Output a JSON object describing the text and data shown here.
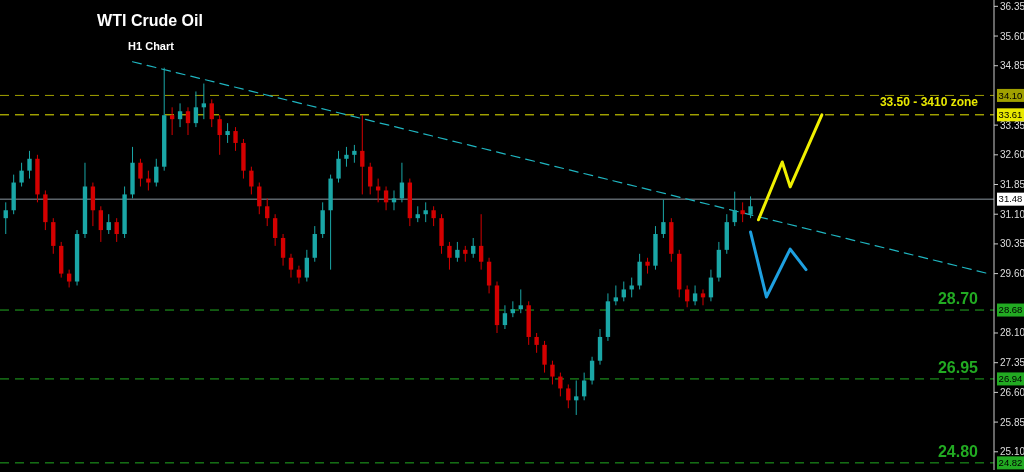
{
  "chart_data": {
    "type": "candlestick",
    "title": "WTI Crude Oil",
    "subtitle": "H1 Chart",
    "categories": [
      null,
      null,
      null,
      null,
      null,
      null,
      null,
      null,
      null,
      null,
      null,
      null,
      null,
      null,
      null,
      null,
      null,
      null,
      null,
      null,
      null,
      null,
      null,
      null,
      null,
      null,
      null,
      null,
      null,
      null,
      null,
      null,
      null,
      null,
      null,
      null,
      null,
      null,
      null,
      null,
      null,
      null,
      null,
      null,
      null,
      null,
      null,
      null,
      null,
      null,
      null,
      null,
      null,
      null,
      null,
      null,
      null,
      null,
      null,
      null,
      null,
      null,
      null,
      null,
      null,
      null,
      null,
      null,
      null,
      null,
      null,
      null,
      null,
      null,
      null,
      null,
      null,
      null,
      null,
      null,
      null,
      null,
      null,
      null,
      null,
      null,
      null,
      null,
      null,
      null,
      null,
      null,
      null,
      null,
      null,
      null,
      null,
      null,
      null,
      null,
      null,
      null,
      null,
      null,
      null,
      null,
      null,
      null,
      null,
      null,
      null,
      null,
      null,
      null,
      null,
      null,
      null,
      null,
      null,
      null,
      null,
      null,
      null,
      null,
      null
    ],
    "ohlc": [
      [
        31.0,
        31.4,
        30.6,
        31.2
      ],
      [
        31.2,
        32.1,
        31.1,
        31.9
      ],
      [
        31.9,
        32.4,
        31.8,
        32.2
      ],
      [
        32.2,
        32.7,
        32.0,
        32.5
      ],
      [
        32.5,
        32.6,
        31.4,
        31.6
      ],
      [
        31.6,
        31.7,
        30.7,
        30.9
      ],
      [
        30.9,
        31.0,
        30.1,
        30.3
      ],
      [
        30.3,
        30.4,
        29.5,
        29.6
      ],
      [
        29.6,
        29.7,
        29.25,
        29.4
      ],
      [
        29.4,
        30.7,
        29.3,
        30.6
      ],
      [
        30.6,
        32.4,
        30.5,
        31.8
      ],
      [
        31.8,
        31.9,
        30.8,
        31.2
      ],
      [
        31.2,
        31.3,
        30.4,
        30.7
      ],
      [
        30.7,
        31.1,
        30.6,
        30.9
      ],
      [
        30.9,
        31.0,
        30.4,
        30.6
      ],
      [
        30.6,
        31.8,
        30.5,
        31.6
      ],
      [
        31.6,
        32.8,
        31.5,
        32.4
      ],
      [
        32.4,
        32.5,
        31.8,
        32.0
      ],
      [
        32.0,
        32.2,
        31.7,
        31.9
      ],
      [
        31.9,
        32.5,
        31.8,
        32.3
      ],
      [
        32.3,
        34.8,
        32.2,
        33.6
      ],
      [
        33.6,
        33.8,
        33.1,
        33.5
      ],
      [
        33.5,
        33.9,
        33.3,
        33.7
      ],
      [
        33.7,
        33.8,
        33.1,
        33.4
      ],
      [
        33.4,
        34.2,
        33.3,
        33.8
      ],
      [
        33.8,
        34.4,
        33.5,
        33.9
      ],
      [
        33.9,
        34.0,
        33.3,
        33.5
      ],
      [
        33.5,
        33.6,
        32.6,
        33.1
      ],
      [
        33.1,
        33.4,
        32.9,
        33.2
      ],
      [
        33.2,
        33.3,
        32.7,
        32.9
      ],
      [
        32.9,
        33.0,
        32.0,
        32.2
      ],
      [
        32.2,
        32.3,
        31.6,
        31.8
      ],
      [
        31.8,
        31.9,
        31.1,
        31.3
      ],
      [
        31.3,
        31.5,
        30.8,
        31.0
      ],
      [
        31.0,
        31.1,
        30.3,
        30.5
      ],
      [
        30.5,
        30.6,
        29.8,
        30.0
      ],
      [
        30.0,
        30.1,
        29.5,
        29.7
      ],
      [
        29.7,
        29.8,
        29.35,
        29.5
      ],
      [
        29.5,
        30.2,
        29.4,
        30.0
      ],
      [
        30.0,
        30.8,
        29.9,
        30.6
      ],
      [
        30.6,
        31.4,
        30.5,
        31.2
      ],
      [
        31.2,
        32.1,
        29.7,
        32.0
      ],
      [
        32.0,
        32.7,
        31.9,
        32.5
      ],
      [
        32.5,
        32.8,
        32.3,
        32.6
      ],
      [
        32.6,
        32.85,
        32.4,
        32.7
      ],
      [
        32.7,
        33.6,
        31.6,
        32.3
      ],
      [
        32.3,
        32.4,
        31.6,
        31.8
      ],
      [
        31.8,
        32.0,
        31.4,
        31.7
      ],
      [
        31.7,
        31.8,
        31.2,
        31.4
      ],
      [
        31.4,
        31.7,
        31.2,
        31.5
      ],
      [
        31.5,
        32.4,
        31.4,
        31.9
      ],
      [
        31.9,
        32.0,
        30.8,
        31.0
      ],
      [
        31.0,
        31.3,
        30.9,
        31.1
      ],
      [
        31.1,
        31.4,
        30.9,
        31.2
      ],
      [
        31.2,
        31.3,
        30.8,
        31.0
      ],
      [
        31.0,
        31.1,
        30.1,
        30.3
      ],
      [
        30.3,
        30.4,
        29.7,
        30.0
      ],
      [
        30.0,
        30.4,
        29.9,
        30.2
      ],
      [
        30.2,
        30.3,
        29.9,
        30.1
      ],
      [
        30.1,
        30.5,
        30.0,
        30.3
      ],
      [
        30.3,
        31.1,
        29.7,
        29.9
      ],
      [
        29.9,
        30.0,
        29.1,
        29.3
      ],
      [
        29.3,
        29.4,
        28.1,
        28.3
      ],
      [
        28.3,
        28.8,
        28.2,
        28.6
      ],
      [
        28.6,
        28.9,
        28.5,
        28.7
      ],
      [
        28.7,
        29.2,
        28.6,
        28.8
      ],
      [
        28.8,
        28.9,
        27.8,
        28.0
      ],
      [
        28.0,
        28.1,
        27.6,
        27.8
      ],
      [
        27.8,
        27.9,
        27.1,
        27.3
      ],
      [
        27.3,
        27.4,
        26.8,
        27.0
      ],
      [
        27.0,
        27.1,
        26.5,
        26.7
      ],
      [
        26.7,
        26.8,
        26.2,
        26.4
      ],
      [
        26.4,
        26.9,
        26.03,
        26.5
      ],
      [
        26.5,
        27.1,
        26.4,
        26.9
      ],
      [
        26.9,
        27.5,
        26.8,
        27.4
      ],
      [
        27.4,
        28.2,
        27.3,
        28.0
      ],
      [
        28.0,
        29.1,
        27.9,
        28.9
      ],
      [
        28.9,
        29.3,
        28.8,
        29.0
      ],
      [
        29.0,
        29.4,
        28.9,
        29.2
      ],
      [
        29.2,
        29.5,
        29.0,
        29.3
      ],
      [
        29.3,
        30.1,
        29.2,
        29.9
      ],
      [
        29.9,
        30.0,
        29.6,
        29.8
      ],
      [
        29.8,
        30.8,
        29.7,
        30.6
      ],
      [
        30.6,
        31.47,
        30.5,
        30.9
      ],
      [
        30.9,
        31.0,
        29.9,
        30.1
      ],
      [
        30.1,
        30.2,
        29.0,
        29.2
      ],
      [
        29.2,
        29.3,
        28.75,
        28.9
      ],
      [
        28.9,
        29.3,
        28.8,
        29.1
      ],
      [
        29.1,
        29.2,
        28.8,
        29.0
      ],
      [
        29.0,
        29.7,
        28.9,
        29.5
      ],
      [
        29.5,
        30.4,
        29.4,
        30.2
      ],
      [
        30.2,
        31.1,
        30.1,
        30.9
      ],
      [
        30.9,
        31.67,
        30.8,
        31.2
      ],
      [
        31.2,
        31.4,
        30.9,
        31.1
      ],
      [
        31.1,
        31.55,
        31.0,
        31.3
      ],
      null,
      null,
      null,
      null,
      null,
      null,
      null,
      null,
      null,
      null,
      null,
      null,
      null,
      null,
      null,
      null,
      null,
      null,
      null,
      null,
      null,
      null,
      null,
      null,
      null,
      null,
      null,
      null,
      null,
      null
    ],
    "colors": [
      "#1aa6a6",
      "#1aa6a6",
      "#1aa6a6",
      "#1aa6a6",
      "#d40000",
      "#d40000",
      "#d40000",
      "#d40000",
      "#d40000",
      "#1aa6a6",
      "#1aa6a6",
      "#d40000",
      "#d40000",
      "#1aa6a6",
      "#d40000",
      "#1aa6a6",
      "#1aa6a6",
      "#d40000",
      "#d40000",
      "#1aa6a6",
      "#1aa6a6",
      "#d40000",
      "#1aa6a6",
      "#d40000",
      "#1aa6a6",
      "#1aa6a6",
      "#d40000",
      "#d40000",
      "#1aa6a6",
      "#d40000",
      "#d40000",
      "#d40000",
      "#d40000",
      "#d40000",
      "#d40000",
      "#d40000",
      "#d40000",
      "#d40000",
      "#1aa6a6",
      "#1aa6a6",
      "#1aa6a6",
      "#1aa6a6",
      "#1aa6a6",
      "#1aa6a6",
      "#1aa6a6",
      "#d40000",
      "#d40000",
      "#d40000",
      "#d40000",
      "#1aa6a6",
      "#1aa6a6",
      "#d40000",
      "#1aa6a6",
      "#1aa6a6",
      "#d40000",
      "#d40000",
      "#d40000",
      "#1aa6a6",
      "#d40000",
      "#1aa6a6",
      "#d40000",
      "#d40000",
      "#d40000",
      "#1aa6a6",
      "#1aa6a6",
      "#1aa6a6",
      "#d40000",
      "#d40000",
      "#d40000",
      "#d40000",
      "#d40000",
      "#d40000",
      "#1aa6a6",
      "#1aa6a6",
      "#1aa6a6",
      "#1aa6a6",
      "#1aa6a6",
      "#1aa6a6",
      "#1aa6a6",
      "#1aa6a6",
      "#1aa6a6",
      "#d40000",
      "#1aa6a6",
      "#1aa6a6",
      "#d40000",
      "#d40000",
      "#d40000",
      "#1aa6a6",
      "#d40000",
      "#1aa6a6",
      "#1aa6a6",
      "#1aa6a6",
      "#1aa6a6",
      "#d40000",
      "#1aa6a6",
      null,
      null,
      null,
      null,
      null,
      null,
      null,
      null,
      null,
      null,
      null,
      null,
      null,
      null,
      null,
      null,
      null,
      null,
      null,
      null,
      null,
      null,
      null,
      null,
      null,
      null,
      null,
      null,
      null,
      null
    ],
    "series": [
      {
        "type": "line",
        "color": "#1fb5c0",
        "line_style": "dashed",
        "values": [
          null,
          null,
          null,
          null,
          null,
          null,
          null,
          null,
          null,
          null,
          null,
          null,
          null,
          null,
          null,
          null,
          34.95,
          null,
          null,
          null,
          null,
          null,
          null,
          null,
          null,
          null,
          null,
          null,
          null,
          null,
          null,
          null,
          null,
          null,
          null,
          null,
          null,
          null,
          null,
          null,
          null,
          null,
          null,
          null,
          null,
          null,
          null,
          null,
          null,
          null,
          null,
          null,
          null,
          null,
          null,
          null,
          null,
          null,
          null,
          null,
          null,
          null,
          null,
          null,
          null,
          null,
          null,
          null,
          null,
          null,
          null,
          null,
          null,
          null,
          null,
          null,
          null,
          null,
          null,
          null,
          null,
          null,
          null,
          null,
          null,
          null,
          null,
          null,
          null,
          null,
          null,
          null,
          null,
          null,
          null,
          null,
          null,
          null,
          null,
          null,
          null,
          null,
          null,
          null,
          null,
          null,
          null,
          null,
          null,
          null,
          null,
          null,
          null,
          null,
          null,
          null,
          null,
          null,
          null,
          null,
          null,
          null,
          null,
          null,
          29.6
        ]
      },
      {
        "type": "line",
        "color": "#f0f000",
        "line_style": "solid",
        "values": [
          null,
          null,
          null,
          null,
          null,
          null,
          null,
          null,
          null,
          null,
          null,
          null,
          null,
          null,
          null,
          null,
          null,
          null,
          null,
          null,
          null,
          null,
          null,
          null,
          null,
          null,
          null,
          null,
          null,
          null,
          null,
          null,
          null,
          null,
          null,
          null,
          null,
          null,
          null,
          null,
          null,
          null,
          null,
          null,
          null,
          null,
          null,
          null,
          null,
          null,
          null,
          null,
          null,
          null,
          null,
          null,
          null,
          null,
          null,
          null,
          null,
          null,
          null,
          null,
          null,
          null,
          null,
          null,
          null,
          null,
          null,
          null,
          null,
          null,
          null,
          null,
          null,
          null,
          null,
          null,
          null,
          null,
          null,
          null,
          null,
          null,
          null,
          null,
          null,
          null,
          null,
          null,
          null,
          null,
          null,
          30.96,
          null,
          null,
          32.42,
          31.79,
          null,
          null,
          null,
          33.61,
          null,
          null,
          null,
          null,
          null,
          null,
          null,
          null,
          null,
          null,
          null,
          null,
          null,
          null,
          null,
          null,
          null,
          null,
          null,
          null,
          null
        ]
      },
      {
        "type": "line",
        "color": "#1ea0e0",
        "line_style": "solid",
        "values": [
          null,
          null,
          null,
          null,
          null,
          null,
          null,
          null,
          null,
          null,
          null,
          null,
          null,
          null,
          null,
          null,
          null,
          null,
          null,
          null,
          null,
          null,
          null,
          null,
          null,
          null,
          null,
          null,
          null,
          null,
          null,
          null,
          null,
          null,
          null,
          null,
          null,
          null,
          null,
          null,
          null,
          null,
          null,
          null,
          null,
          null,
          null,
          null,
          null,
          null,
          null,
          null,
          null,
          null,
          null,
          null,
          null,
          null,
          null,
          null,
          null,
          null,
          null,
          null,
          null,
          null,
          null,
          null,
          null,
          null,
          null,
          null,
          null,
          null,
          null,
          null,
          null,
          null,
          null,
          null,
          null,
          null,
          null,
          null,
          null,
          null,
          null,
          null,
          null,
          null,
          null,
          null,
          null,
          null,
          30.65,
          null,
          29.01,
          null,
          null,
          30.22,
          null,
          29.7,
          null,
          null,
          null,
          null,
          null,
          null,
          null,
          null,
          null,
          null,
          null,
          null,
          null,
          null,
          null,
          null,
          null,
          null,
          null,
          null,
          null,
          null,
          null
        ]
      }
    ],
    "ylim": [
      24.64,
      36.51
    ],
    "yticks": [
      36.35,
      {
        "value": 35.6,
        "label": "35.60"
      },
      34.85,
      33.35,
      {
        "value": 32.6,
        "label": "32.60"
      },
      31.85,
      {
        "value": 31.1,
        "label": "31.10"
      },
      30.35,
      {
        "value": 29.6,
        "label": "29.60"
      },
      {
        "value": 28.1,
        "label": "28.10"
      },
      27.35,
      {
        "value": 26.6,
        "label": "26.60"
      },
      25.85,
      {
        "value": 25.1,
        "label": "25.10"
      }
    ],
    "tick_labels": "y",
    "grid": false,
    "ref_lines": [
      {
        "axis": "y",
        "value": 34.1,
        "label": "34.10",
        "color": "#a0a000",
        "line_style": "dashed"
      },
      {
        "axis": "y",
        "value": 33.61,
        "label": "33.61",
        "color": "#e8e800",
        "line_style": "dashed"
      },
      {
        "axis": "y",
        "value": 31.48,
        "label": "31.48",
        "color": "#8a96a0",
        "line_style": "solid"
      },
      {
        "axis": "y",
        "value": 28.68,
        "label": "28.68",
        "color": "#22aa22",
        "line_style": "dashed"
      },
      {
        "axis": "y",
        "value": 26.94,
        "label": "26.94",
        "color": "#22aa22",
        "line_style": "dashed"
      },
      {
        "axis": "y",
        "value": 24.82,
        "label": "24.82",
        "color": "#22aa22",
        "line_style": "dashed"
      }
    ],
    "annotations": [
      {
        "text": "33.50 - 3410 zone",
        "y": 33.61
      },
      {
        "text": "28.70",
        "y": 28.68
      },
      {
        "text": "26.95",
        "y": 26.94
      },
      {
        "text": "24.80",
        "y": 24.82
      }
    ]
  }
}
